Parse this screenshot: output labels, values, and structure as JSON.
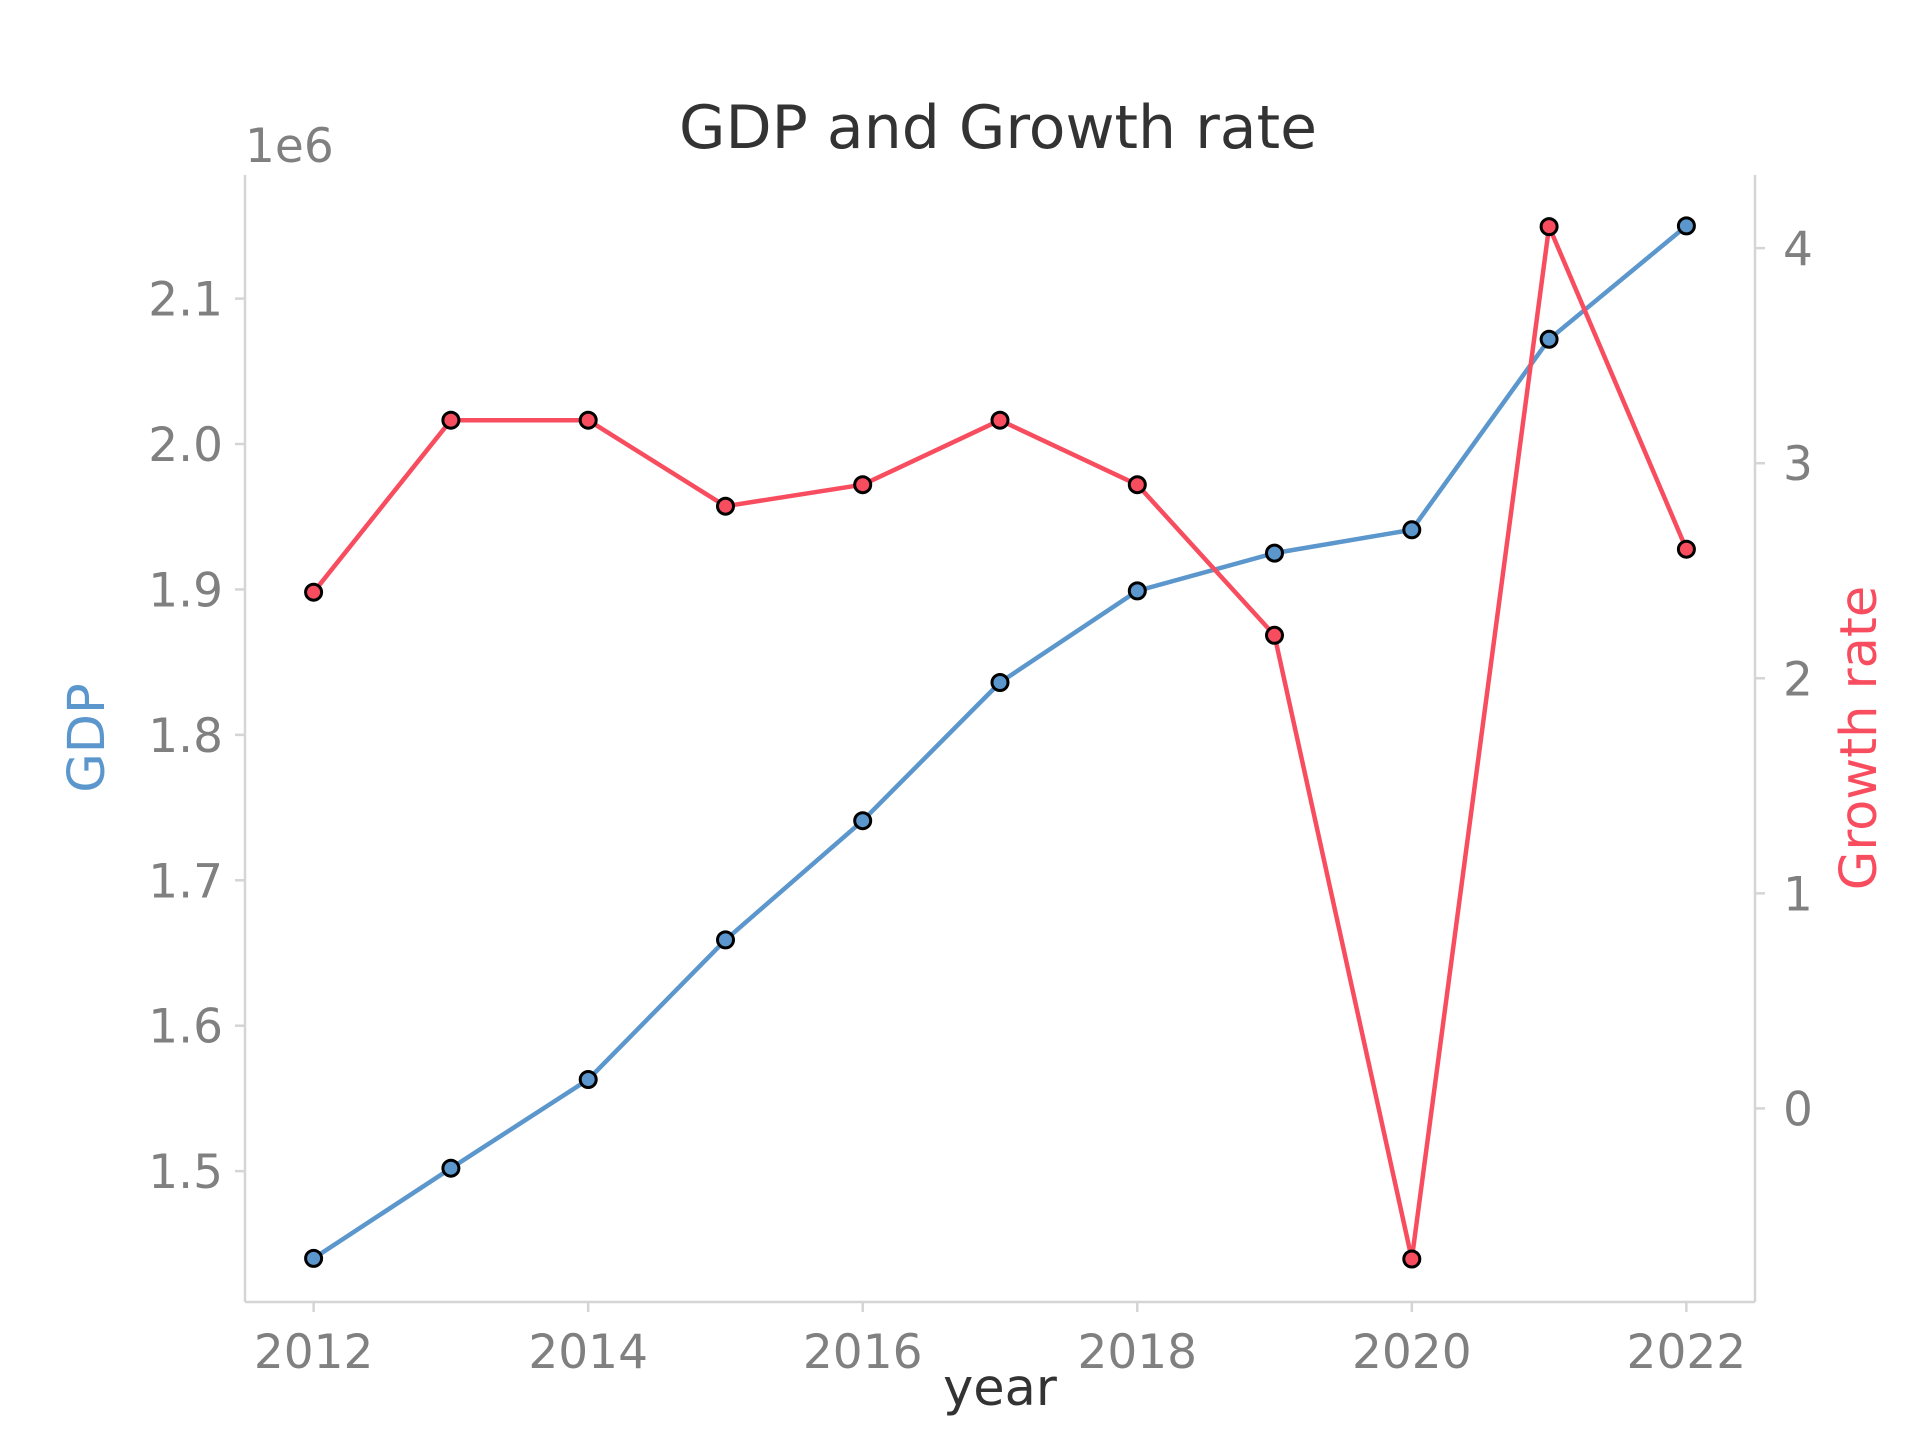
{
  "chart_data": {
    "type": "line",
    "title": "GDP and Growth rate",
    "xlabel": "year",
    "x": [
      2012,
      2013,
      2014,
      2015,
      2016,
      2017,
      2018,
      2019,
      2020,
      2021,
      2022
    ],
    "x_ticks": [
      "2012",
      "2014",
      "2016",
      "2018",
      "2020",
      "2022"
    ],
    "x_tick_values": [
      2012,
      2014,
      2016,
      2018,
      2020,
      2022
    ],
    "xlim": [
      2011.5,
      2022.5
    ],
    "y_left": {
      "label": "GDP",
      "color": "#5b97cc",
      "offset_text": "1e6",
      "tick_labels": [
        "1.5",
        "1.6",
        "1.7",
        "1.8",
        "1.9",
        "2.0",
        "2.1"
      ],
      "tick_values": [
        1500000,
        1600000,
        1700000,
        1800000,
        1900000,
        2000000,
        2100000
      ],
      "ylim": [
        1410000,
        2185000
      ]
    },
    "y_right": {
      "label": "Growth rate",
      "color": "#f74d5f",
      "tick_labels": [
        "0",
        "1",
        "2",
        "3",
        "4"
      ],
      "tick_values": [
        0,
        1,
        2,
        3,
        4
      ],
      "ylim": [
        -0.9,
        4.34
      ]
    },
    "series": [
      {
        "name": "GDP",
        "axis": "left",
        "color": "#5b97cc",
        "values": [
          1440000,
          1502000,
          1563000,
          1659000,
          1741000,
          1836000,
          1899000,
          1925000,
          1941000,
          2072000,
          2150000
        ]
      },
      {
        "name": "Growth rate",
        "axis": "right",
        "color": "#f74d5f",
        "values": [
          2.4,
          3.2,
          3.2,
          2.8,
          2.9,
          3.2,
          2.9,
          2.2,
          -0.7,
          4.1,
          2.6
        ]
      }
    ],
    "grid": false
  }
}
